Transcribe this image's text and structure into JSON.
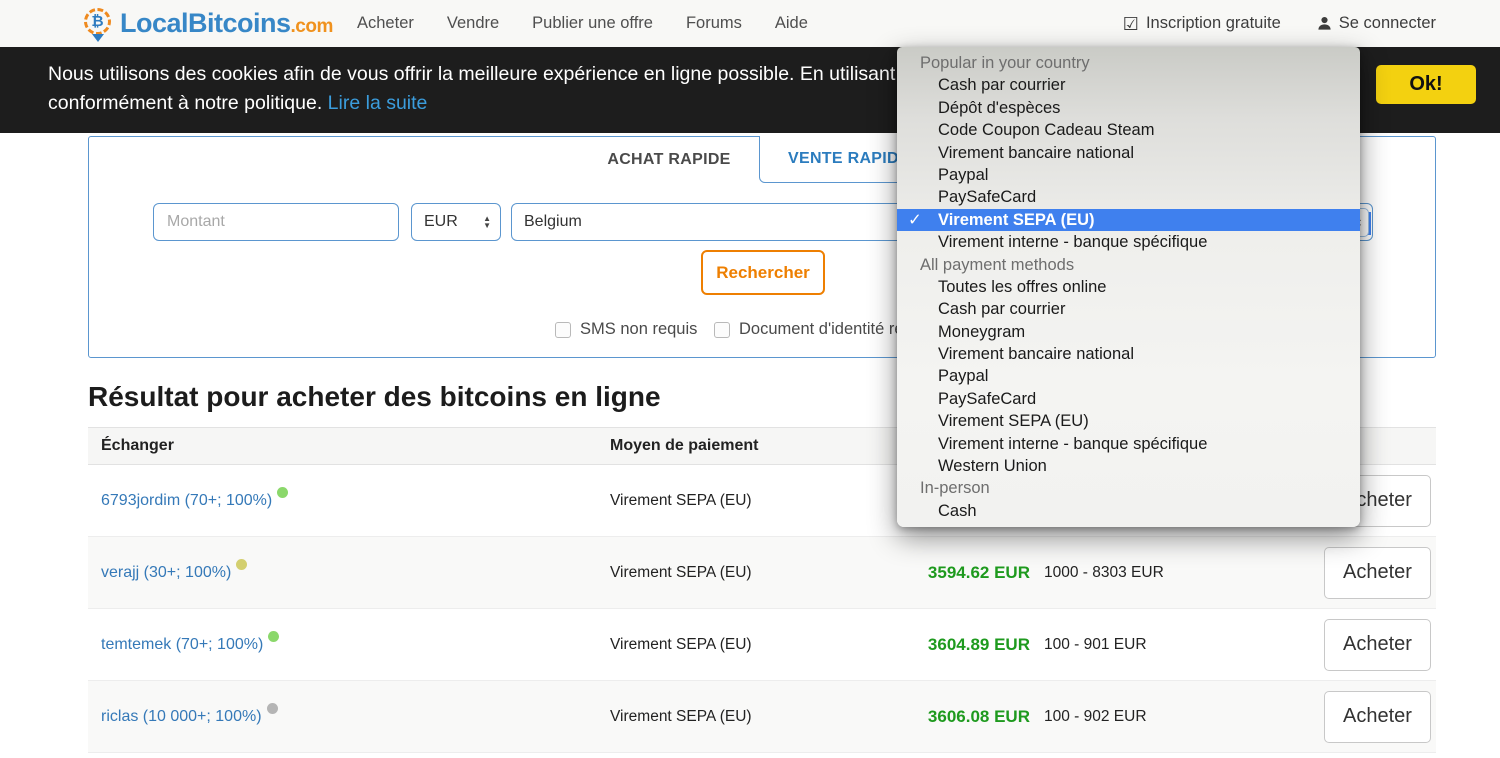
{
  "brand": {
    "name": "LocalBitcoins",
    "tld": ".com"
  },
  "nav": {
    "items": [
      "Acheter",
      "Vendre",
      "Publier une offre",
      "Forums",
      "Aide"
    ],
    "signup_label": "Inscription gratuite",
    "login_label": "Se connecter"
  },
  "cookie": {
    "line1": "Nous utilisons des cookies afin de vous offrir la meilleure expérience en ligne possible. En utilisant n",
    "line2": "conformément à notre politique.",
    "read_more": "Lire la suite",
    "ok_label": "Ok!"
  },
  "quickbuy": {
    "tab_buy": "ACHAT RAPIDE",
    "tab_sell": "VENTE RAPIDE",
    "amount_placeholder": "Montant",
    "currency_value": "EUR",
    "country_value": "Belgium",
    "search_label": "Rechercher",
    "checkbox_sms": "SMS non requis",
    "checkbox_id": "Document d'identité requis"
  },
  "results": {
    "title": "Résultat pour acheter des bitcoins en ligne",
    "columns": {
      "trader": "Échanger",
      "payment": "Moyen de paiement"
    },
    "buy_label": "Acheter",
    "rows": [
      {
        "trader": "6793jordim (70+; 100%)",
        "dot_color": "#8bd86b",
        "payment": "Virement SEPA (EU)",
        "price": "",
        "limits": ""
      },
      {
        "trader": "verajj (30+; 100%)",
        "dot_color": "#d3cf6f",
        "payment": "Virement SEPA (EU)",
        "price": "3594.62 EUR",
        "limits": "1000 - 8303 EUR"
      },
      {
        "trader": "temtemek (70+; 100%)",
        "dot_color": "#8bd86b",
        "payment": "Virement SEPA (EU)",
        "price": "3604.89 EUR",
        "limits": "100 - 901 EUR"
      },
      {
        "trader": "riclas (10 000+; 100%)",
        "dot_color": "#b5b5b5",
        "payment": "Virement SEPA (EU)",
        "price": "3606.08 EUR",
        "limits": "100 - 902 EUR"
      }
    ]
  },
  "payment_dropdown": {
    "items": [
      {
        "label": "Popular in your country",
        "type": "group"
      },
      {
        "label": "Cash par courrier",
        "type": "item"
      },
      {
        "label": "Dépôt d'espèces",
        "type": "item"
      },
      {
        "label": "Code Coupon Cadeau Steam",
        "type": "item"
      },
      {
        "label": "Virement bancaire national",
        "type": "item"
      },
      {
        "label": "Paypal",
        "type": "item"
      },
      {
        "label": "PaySafeCard",
        "type": "item"
      },
      {
        "label": "Virement SEPA (EU)",
        "type": "item",
        "selected": true
      },
      {
        "label": "Virement interne - banque spécifique",
        "type": "item"
      },
      {
        "label": "All payment methods",
        "type": "group"
      },
      {
        "label": "Toutes les offres online",
        "type": "item"
      },
      {
        "label": "Cash par courrier",
        "type": "item"
      },
      {
        "label": "Moneygram",
        "type": "item"
      },
      {
        "label": "Virement bancaire national",
        "type": "item"
      },
      {
        "label": "Paypal",
        "type": "item"
      },
      {
        "label": "PaySafeCard",
        "type": "item"
      },
      {
        "label": "Virement SEPA (EU)",
        "type": "item"
      },
      {
        "label": "Virement interne - banque spécifique",
        "type": "item"
      },
      {
        "label": "Western Union",
        "type": "item"
      },
      {
        "label": "In-person",
        "type": "group"
      },
      {
        "label": "Cash",
        "type": "item"
      }
    ],
    "checkmark": "✓"
  },
  "colors": {
    "brand_blue": "#3787c7",
    "brand_orange": "#f0921e",
    "panel_border_blue": "#5b96cf",
    "search_orange": "#ee7f01",
    "price_green": "#1e9a1e",
    "selection_blue": "#3f80ee",
    "ok_yellow": "#f3d110",
    "cookie_bg": "#1d1d1d"
  }
}
